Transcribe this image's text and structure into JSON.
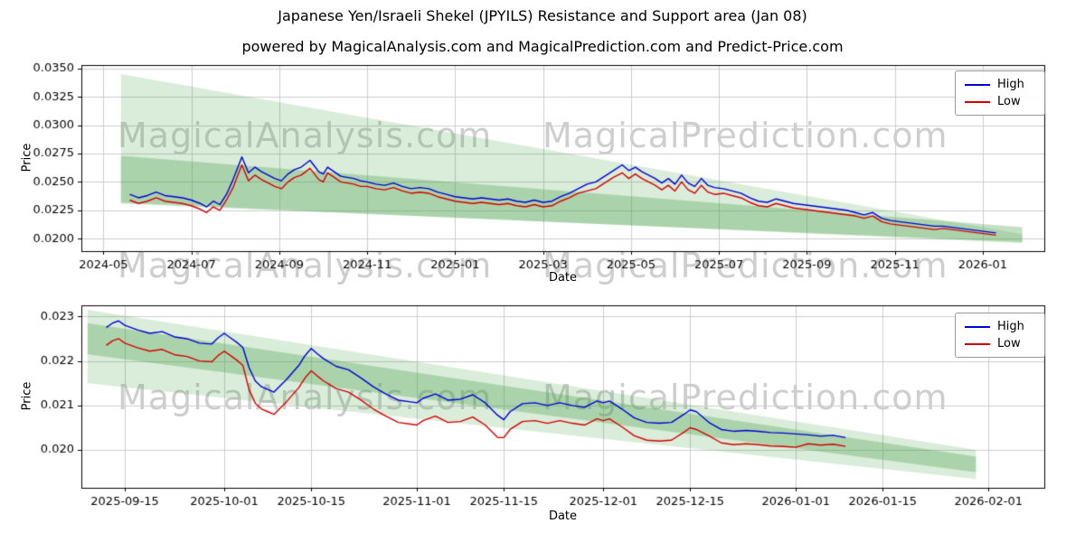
{
  "header": {
    "title": "Japanese Yen/Israeli Shekel (JPYILS) Resistance and Support area (Jan 08)",
    "subtitle": "powered by MagicalAnalysis.com and MagicalPrediction.com and Predict-Price.com"
  },
  "watermarks": {
    "left": "MagicalAnalysis.com",
    "right": "MagicalPrediction.com"
  },
  "legend": {
    "high_label": "High",
    "low_label": "Low"
  },
  "colors": {
    "high": "#0000d4",
    "low": "#d40000",
    "band": "#46a046",
    "grid": "#cccccc",
    "watermark": "#8c8c8c"
  },
  "chart_data": [
    {
      "type": "line",
      "xlabel": "Date",
      "ylabel": "Price",
      "x_unit": "months since 2024-01",
      "xlim": [
        3.5,
        25.4
      ],
      "ylim": [
        0.0189,
        0.0353
      ],
      "grid": true,
      "legend_position": "upper right",
      "x_ticks": [
        {
          "value": 4,
          "label": "2024-05"
        },
        {
          "value": 6,
          "label": "2024-07"
        },
        {
          "value": 8,
          "label": "2024-09"
        },
        {
          "value": 10,
          "label": "2024-11"
        },
        {
          "value": 12,
          "label": "2025-01"
        },
        {
          "value": 14,
          "label": "2025-03"
        },
        {
          "value": 16,
          "label": "2025-05"
        },
        {
          "value": 18,
          "label": "2025-07"
        },
        {
          "value": 20,
          "label": "2025-09"
        },
        {
          "value": 22,
          "label": "2025-11"
        },
        {
          "value": 24,
          "label": "2026-01"
        }
      ],
      "y_ticks": [
        {
          "value": 0.02,
          "label": "0.0200"
        },
        {
          "value": 0.0225,
          "label": "0.0225"
        },
        {
          "value": 0.025,
          "label": "0.0250"
        },
        {
          "value": 0.0275,
          "label": "0.0275"
        },
        {
          "value": 0.03,
          "label": "0.0300"
        },
        {
          "value": 0.0325,
          "label": "0.0325"
        },
        {
          "value": 0.035,
          "label": "0.0350"
        }
      ],
      "bands": [
        {
          "x": [
            4.4,
            24.9
          ],
          "top": [
            0.0345,
            0.0204
          ],
          "bottom": [
            0.0232,
            0.0196
          ],
          "alpha": 0.2
        },
        {
          "x": [
            4.4,
            24.9
          ],
          "top": [
            0.0273,
            0.021
          ],
          "bottom": [
            0.0231,
            0.0197
          ],
          "alpha": 0.32
        }
      ],
      "x": [
        4.6,
        4.8,
        5.0,
        5.2,
        5.4,
        5.6,
        5.8,
        6.0,
        6.2,
        6.35,
        6.5,
        6.65,
        6.8,
        6.95,
        7.05,
        7.15,
        7.3,
        7.45,
        7.6,
        7.75,
        7.9,
        8.05,
        8.2,
        8.35,
        8.5,
        8.6,
        8.7,
        8.8,
        8.9,
        9.0,
        9.1,
        9.25,
        9.4,
        9.55,
        9.7,
        9.85,
        10.0,
        10.2,
        10.4,
        10.6,
        10.8,
        11.0,
        11.2,
        11.4,
        11.6,
        11.8,
        12.0,
        12.2,
        12.4,
        12.6,
        12.8,
        13.0,
        13.2,
        13.4,
        13.6,
        13.8,
        14.0,
        14.2,
        14.4,
        14.6,
        14.8,
        15.0,
        15.2,
        15.4,
        15.6,
        15.8,
        15.95,
        16.1,
        16.25,
        16.4,
        16.55,
        16.7,
        16.85,
        17.0,
        17.15,
        17.3,
        17.45,
        17.6,
        17.75,
        17.9,
        18.1,
        18.3,
        18.5,
        18.7,
        18.9,
        19.1,
        19.3,
        19.5,
        19.7,
        19.9,
        20.1,
        20.3,
        20.5,
        20.7,
        20.9,
        21.1,
        21.3,
        21.5,
        21.7,
        21.9,
        22.1,
        22.3,
        22.5,
        22.7,
        22.9,
        23.1,
        23.3,
        23.5,
        23.7,
        23.9,
        24.1,
        24.3
      ],
      "series": [
        {
          "name": "High",
          "color": "#0000d4",
          "values": [
            0.0239,
            0.0236,
            0.0238,
            0.0241,
            0.0238,
            0.0237,
            0.0236,
            0.0234,
            0.0231,
            0.0228,
            0.0233,
            0.023,
            0.0239,
            0.0252,
            0.0262,
            0.0272,
            0.0258,
            0.0263,
            0.0259,
            0.0256,
            0.0253,
            0.0251,
            0.0257,
            0.0261,
            0.0263,
            0.0266,
            0.0269,
            0.0264,
            0.0259,
            0.0257,
            0.0263,
            0.0259,
            0.0255,
            0.0254,
            0.0253,
            0.0251,
            0.025,
            0.0248,
            0.0247,
            0.0249,
            0.0246,
            0.0244,
            0.0245,
            0.0244,
            0.0241,
            0.0239,
            0.0237,
            0.0236,
            0.0235,
            0.0236,
            0.0235,
            0.0234,
            0.0235,
            0.0233,
            0.0232,
            0.0234,
            0.0232,
            0.0233,
            0.0237,
            0.024,
            0.0244,
            0.0248,
            0.025,
            0.0255,
            0.026,
            0.0265,
            0.026,
            0.0263,
            0.0259,
            0.0256,
            0.0253,
            0.0249,
            0.0253,
            0.0248,
            0.0256,
            0.0249,
            0.0246,
            0.0253,
            0.0247,
            0.0245,
            0.0244,
            0.0242,
            0.024,
            0.0236,
            0.0233,
            0.0232,
            0.0235,
            0.0233,
            0.0231,
            0.023,
            0.0229,
            0.0228,
            0.0227,
            0.0226,
            0.0225,
            0.0223,
            0.0221,
            0.0223,
            0.0218,
            0.0216,
            0.0215,
            0.0214,
            0.0213,
            0.0212,
            0.0211,
            0.0211,
            0.021,
            0.0209,
            0.0208,
            0.0207,
            0.0206,
            0.0205
          ]
        },
        {
          "name": "Low",
          "color": "#d40000",
          "values": [
            0.0234,
            0.0231,
            0.0233,
            0.0236,
            0.0233,
            0.0232,
            0.0231,
            0.0229,
            0.0226,
            0.0223,
            0.0228,
            0.0225,
            0.0234,
            0.0245,
            0.0255,
            0.0265,
            0.0251,
            0.0256,
            0.0252,
            0.0249,
            0.0246,
            0.0244,
            0.025,
            0.0254,
            0.0256,
            0.0259,
            0.0262,
            0.0257,
            0.0252,
            0.025,
            0.0258,
            0.0254,
            0.025,
            0.0249,
            0.0248,
            0.0246,
            0.0246,
            0.0244,
            0.0243,
            0.0245,
            0.0242,
            0.024,
            0.0241,
            0.024,
            0.0237,
            0.0235,
            0.0233,
            0.0232,
            0.0231,
            0.0232,
            0.0231,
            0.023,
            0.0231,
            0.0229,
            0.0228,
            0.023,
            0.0228,
            0.0229,
            0.0233,
            0.0236,
            0.024,
            0.0242,
            0.0244,
            0.0249,
            0.0254,
            0.0258,
            0.0253,
            0.0257,
            0.0253,
            0.025,
            0.0247,
            0.0243,
            0.0247,
            0.0242,
            0.025,
            0.0243,
            0.024,
            0.0247,
            0.0241,
            0.0239,
            0.024,
            0.0238,
            0.0236,
            0.0232,
            0.0229,
            0.0228,
            0.0231,
            0.0229,
            0.0227,
            0.0226,
            0.0225,
            0.0224,
            0.0223,
            0.0222,
            0.0221,
            0.022,
            0.0218,
            0.022,
            0.0215,
            0.0213,
            0.0212,
            0.0211,
            0.021,
            0.0209,
            0.0208,
            0.0209,
            0.0208,
            0.0207,
            0.0206,
            0.0205,
            0.0204,
            0.0203
          ]
        }
      ]
    },
    {
      "type": "line",
      "xlabel": "Date",
      "ylabel": "Price",
      "x_unit": "days since 2025-09-01",
      "xlim": [
        7,
        162
      ],
      "ylim": [
        0.01915,
        0.02325
      ],
      "grid": true,
      "legend_position": "upper right",
      "x_ticks": [
        {
          "value": 14,
          "label": "2025-09-15"
        },
        {
          "value": 30,
          "label": "2025-10-01"
        },
        {
          "value": 44,
          "label": "2025-10-15"
        },
        {
          "value": 61,
          "label": "2025-11-01"
        },
        {
          "value": 75,
          "label": "2025-11-15"
        },
        {
          "value": 91,
          "label": "2025-12-01"
        },
        {
          "value": 105,
          "label": "2025-12-15"
        },
        {
          "value": 122,
          "label": "2026-01-01"
        },
        {
          "value": 136,
          "label": "2026-01-15"
        },
        {
          "value": 153,
          "label": "2026-02-01"
        }
      ],
      "y_ticks": [
        {
          "value": 0.02,
          "label": "0.020"
        },
        {
          "value": 0.021,
          "label": "0.021"
        },
        {
          "value": 0.022,
          "label": "0.022"
        },
        {
          "value": 0.023,
          "label": "0.023"
        }
      ],
      "bands": [
        {
          "x": [
            8,
            151
          ],
          "top": [
            0.02315,
            0.02
          ],
          "bottom": [
            0.0215,
            0.01935
          ],
          "alpha": 0.2
        },
        {
          "x": [
            8,
            151
          ],
          "top": [
            0.02285,
            0.01985
          ],
          "bottom": [
            0.02215,
            0.0195
          ],
          "alpha": 0.32
        }
      ],
      "x": [
        11,
        12,
        13,
        14,
        16,
        18,
        20,
        22,
        24,
        26,
        28,
        29,
        30,
        31,
        32,
        33,
        34,
        35,
        36,
        37,
        38,
        40,
        42,
        43,
        44,
        45,
        46,
        48,
        50,
        52,
        54,
        56,
        58,
        60,
        61,
        62,
        64,
        66,
        68,
        70,
        72,
        74,
        75,
        76,
        78,
        80,
        82,
        84,
        86,
        88,
        90,
        91,
        92,
        94,
        96,
        98,
        100,
        102,
        104,
        105,
        106,
        108,
        110,
        112,
        114,
        116,
        118,
        120,
        122,
        124,
        126,
        128,
        130
      ],
      "series": [
        {
          "name": "High",
          "color": "#0000d4",
          "values": [
            0.02275,
            0.02285,
            0.0229,
            0.0228,
            0.0227,
            0.02262,
            0.02266,
            0.02254,
            0.0225,
            0.0224,
            0.02238,
            0.02252,
            0.02262,
            0.02252,
            0.02242,
            0.0223,
            0.02185,
            0.02155,
            0.02142,
            0.02136,
            0.0213,
            0.02158,
            0.0219,
            0.02212,
            0.02228,
            0.02216,
            0.02205,
            0.02188,
            0.0218,
            0.02162,
            0.02142,
            0.02126,
            0.02112,
            0.02108,
            0.02106,
            0.02116,
            0.02126,
            0.02112,
            0.02114,
            0.02124,
            0.02106,
            0.02078,
            0.02068,
            0.02086,
            0.02104,
            0.02106,
            0.021,
            0.02106,
            0.021,
            0.02096,
            0.0211,
            0.02106,
            0.0211,
            0.02092,
            0.02072,
            0.02062,
            0.0206,
            0.02062,
            0.0208,
            0.0209,
            0.02086,
            0.02062,
            0.02046,
            0.02042,
            0.02044,
            0.02042,
            0.02039,
            0.02038,
            0.02036,
            0.02034,
            0.02031,
            0.02033,
            0.02028
          ]
        },
        {
          "name": "Low",
          "color": "#d40000",
          "values": [
            0.02235,
            0.02245,
            0.0225,
            0.0224,
            0.0223,
            0.02222,
            0.02226,
            0.02214,
            0.0221,
            0.022,
            0.02198,
            0.02212,
            0.02222,
            0.02212,
            0.02202,
            0.0219,
            0.02135,
            0.02105,
            0.02092,
            0.02086,
            0.0208,
            0.02108,
            0.0214,
            0.02162,
            0.02178,
            0.02166,
            0.02155,
            0.02138,
            0.0213,
            0.02112,
            0.02092,
            0.02076,
            0.02062,
            0.02058,
            0.02056,
            0.02066,
            0.02076,
            0.02062,
            0.02064,
            0.02074,
            0.02056,
            0.02028,
            0.02028,
            0.02046,
            0.02064,
            0.02066,
            0.0206,
            0.02066,
            0.0206,
            0.02056,
            0.0207,
            0.02066,
            0.0207,
            0.02052,
            0.02032,
            0.02022,
            0.0202,
            0.02022,
            0.0204,
            0.0205,
            0.02046,
            0.02032,
            0.02016,
            0.02012,
            0.02014,
            0.02012,
            0.02009,
            0.02008,
            0.02006,
            0.02014,
            0.02011,
            0.02013,
            0.02008
          ]
        }
      ]
    }
  ]
}
